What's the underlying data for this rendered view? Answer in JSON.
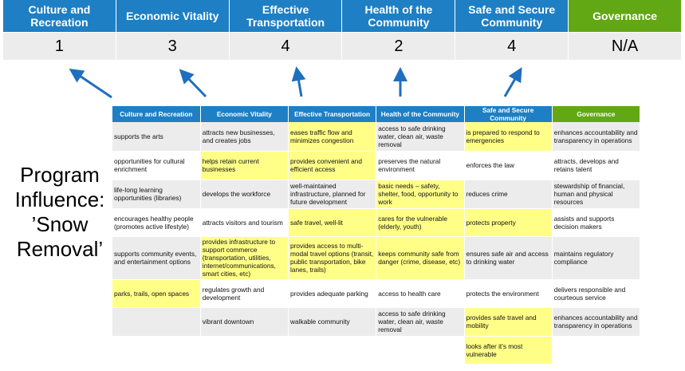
{
  "colors": {
    "blue": "#1e7fc4",
    "green": "#62a814",
    "highlight": "#ffff88",
    "arrow": "#1f6fc0"
  },
  "categories": [
    {
      "label": "Culture and Recreation",
      "score": "1",
      "color": "blue"
    },
    {
      "label": "Economic Vitality",
      "score": "3",
      "color": "blue"
    },
    {
      "label": "Effective Transportation",
      "score": "4",
      "color": "blue"
    },
    {
      "label": "Health of the Community",
      "score": "2",
      "color": "blue"
    },
    {
      "label": "Safe and Secure Community",
      "score": "4",
      "color": "blue"
    },
    {
      "label": "Governance",
      "score": "N/A",
      "color": "green"
    }
  ],
  "program_label": "Program Influence: ’Snow Removal’",
  "table": {
    "headers": [
      "Culture and Recreation",
      "Economic Vitality",
      "Effective Transportation",
      "Health of the Community",
      "Safe and Secure Community",
      "Governance"
    ],
    "rows": [
      [
        {
          "t": "supports the arts"
        },
        {
          "t": "attracts new businesses, and creates jobs"
        },
        {
          "t": "eases traffic flow and minimizes congestion",
          "h": true
        },
        {
          "t": "access to safe drinking water, clean air, waste removal"
        },
        {
          "t": "is prepared to respond to emergencies",
          "h": true
        },
        {
          "t": "enhances accountability and transparency in operations"
        }
      ],
      [
        {
          "t": "opportunities for cultural enrichment"
        },
        {
          "t": "helps retain current businesses",
          "h": true
        },
        {
          "t": "provides convenient and efficient access",
          "h": true
        },
        {
          "t": "preserves the natural environment"
        },
        {
          "t": "enforces the law"
        },
        {
          "t": "attracts, develops and retains talent"
        }
      ],
      [
        {
          "t": "life-long learning opportunities (libraries)"
        },
        {
          "t": "develops the workforce"
        },
        {
          "t": "well-maintained infrastructure, planned for future development"
        },
        {
          "t": "basic needs – safety, shelter, food, opportunity to work",
          "h": true
        },
        {
          "t": "reduces crime"
        },
        {
          "t": "stewardship of financial, human and physical resources"
        }
      ],
      [
        {
          "t": "encourages healthy people (promotes active lifestyle)"
        },
        {
          "t": "attracts visitors and tourism"
        },
        {
          "t": "safe travel, well-lit",
          "h": true
        },
        {
          "t": "cares for the vulnerable (elderly, youth)",
          "h": true
        },
        {
          "t": "protects property",
          "h": true
        },
        {
          "t": "assists and supports decision makers"
        }
      ],
      [
        {
          "t": "supports community events, and entertainment options"
        },
        {
          "t": "provides infrastructure to support commerce (transportation, utilities, internet/communications, smart cities, etc)",
          "h": true
        },
        {
          "t": "provides access to multi-modal travel options (transit, public transportation, bike lanes, trails)",
          "h": true
        },
        {
          "t": "keeps community safe from danger (crime, disease, etc)",
          "h": true
        },
        {
          "t": "ensures safe air and access to drinking water"
        },
        {
          "t": "maintains regulatory compliance"
        }
      ],
      [
        {
          "t": "parks, trails, open spaces",
          "h": true
        },
        {
          "t": "regulates growth and development"
        },
        {
          "t": "provides adequate parking"
        },
        {
          "t": "access to health care"
        },
        {
          "t": "protects the environment"
        },
        {
          "t": "delivers responsible and courteous service"
        }
      ],
      [
        {
          "t": ""
        },
        {
          "t": "vibrant downtown"
        },
        {
          "t": "walkable community"
        },
        {
          "t": "access to safe drinking water, clean air, waste removal"
        },
        {
          "t": "provides safe travel and mobility",
          "h": true
        },
        {
          "t": "enhances accountability and transparency in operations"
        }
      ],
      [
        {
          "t": ""
        },
        {
          "t": ""
        },
        {
          "t": ""
        },
        {
          "t": ""
        },
        {
          "t": "looks after it's most vulnerable",
          "h": true
        },
        {
          "t": ""
        }
      ]
    ]
  }
}
